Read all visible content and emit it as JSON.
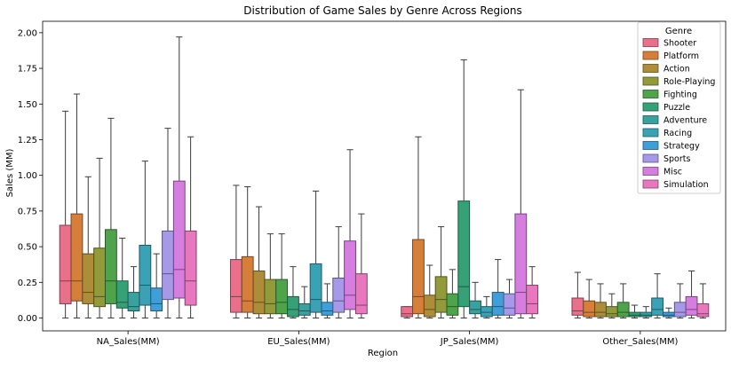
{
  "chart_data": {
    "type": "box",
    "title": "Distribution of Game Sales by Genre Across Regions",
    "xlabel": "Region",
    "ylabel": "Sales (MM)",
    "ylim": [
      -0.09,
      2.08
    ],
    "yticks": [
      "0.00",
      "0.25",
      "0.50",
      "0.75",
      "1.00",
      "1.25",
      "1.50",
      "1.75",
      "2.00"
    ],
    "categories": [
      "NA_Sales(MM)",
      "EU_Sales(MM)",
      "JP_Sales(MM)",
      "Other_Sales(MM)"
    ],
    "legend": {
      "title": "Genre",
      "placement": "upper right"
    },
    "series": [
      {
        "name": "Shooter",
        "color": "#e8708a",
        "boxes": [
          {
            "min": 0.0,
            "q1": 0.1,
            "median": 0.26,
            "q3": 0.65,
            "max": 1.45
          },
          {
            "min": 0.0,
            "q1": 0.04,
            "median": 0.15,
            "q3": 0.41,
            "max": 0.93
          },
          {
            "min": 0.0,
            "q1": 0.01,
            "median": 0.03,
            "q3": 0.08,
            "max": 0.08
          },
          {
            "min": 0.0,
            "q1": 0.02,
            "median": 0.05,
            "q3": 0.14,
            "max": 0.32
          }
        ]
      },
      {
        "name": "Platform",
        "color": "#d67f3a",
        "boxes": [
          {
            "min": 0.0,
            "q1": 0.12,
            "median": 0.26,
            "q3": 0.73,
            "max": 1.57
          },
          {
            "min": 0.0,
            "q1": 0.04,
            "median": 0.12,
            "q3": 0.43,
            "max": 0.92
          },
          {
            "min": 0.0,
            "q1": 0.03,
            "median": 0.15,
            "q3": 0.55,
            "max": 1.27
          },
          {
            "min": 0.0,
            "q1": 0.01,
            "median": 0.04,
            "q3": 0.12,
            "max": 0.27
          }
        ]
      },
      {
        "name": "Action",
        "color": "#ae8d3a",
        "boxes": [
          {
            "min": 0.0,
            "q1": 0.1,
            "median": 0.18,
            "q3": 0.45,
            "max": 0.99
          },
          {
            "min": 0.0,
            "q1": 0.03,
            "median": 0.11,
            "q3": 0.33,
            "max": 0.78
          },
          {
            "min": 0.0,
            "q1": 0.01,
            "median": 0.06,
            "q3": 0.16,
            "max": 0.37
          },
          {
            "min": 0.0,
            "q1": 0.01,
            "median": 0.04,
            "q3": 0.11,
            "max": 0.24
          }
        ]
      },
      {
        "name": "Role-Playing",
        "color": "#929a3a",
        "boxes": [
          {
            "min": 0.0,
            "q1": 0.08,
            "median": 0.15,
            "q3": 0.49,
            "max": 1.12
          },
          {
            "min": 0.0,
            "q1": 0.03,
            "median": 0.1,
            "q3": 0.27,
            "max": 0.59
          },
          {
            "min": 0.0,
            "q1": 0.04,
            "median": 0.13,
            "q3": 0.29,
            "max": 0.64
          },
          {
            "min": 0.0,
            "q1": 0.01,
            "median": 0.03,
            "q3": 0.08,
            "max": 0.17
          }
        ]
      },
      {
        "name": "Fighting",
        "color": "#4fa34a",
        "boxes": [
          {
            "min": 0.0,
            "q1": 0.1,
            "median": 0.26,
            "q3": 0.62,
            "max": 1.4
          },
          {
            "min": 0.0,
            "q1": 0.03,
            "median": 0.11,
            "q3": 0.27,
            "max": 0.59
          },
          {
            "min": 0.0,
            "q1": 0.02,
            "median": 0.08,
            "q3": 0.17,
            "max": 0.34
          },
          {
            "min": 0.0,
            "q1": 0.01,
            "median": 0.04,
            "q3": 0.11,
            "max": 0.24
          }
        ]
      },
      {
        "name": "Puzzle",
        "color": "#36a177",
        "boxes": [
          {
            "min": 0.0,
            "q1": 0.07,
            "median": 0.11,
            "q3": 0.26,
            "max": 0.56
          },
          {
            "min": 0.0,
            "q1": 0.01,
            "median": 0.06,
            "q3": 0.15,
            "max": 0.36
          },
          {
            "min": 0.0,
            "q1": 0.08,
            "median": 0.22,
            "q3": 0.82,
            "max": 1.81
          },
          {
            "min": 0.0,
            "q1": 0.01,
            "median": 0.02,
            "q3": 0.04,
            "max": 0.09
          }
        ]
      },
      {
        "name": "Adventure",
        "color": "#39a19e",
        "boxes": [
          {
            "min": 0.0,
            "q1": 0.05,
            "median": 0.08,
            "q3": 0.18,
            "max": 0.36
          },
          {
            "min": 0.0,
            "q1": 0.02,
            "median": 0.05,
            "q3": 0.1,
            "max": 0.22
          },
          {
            "min": 0.0,
            "q1": 0.03,
            "median": 0.06,
            "q3": 0.12,
            "max": 0.25
          },
          {
            "min": 0.0,
            "q1": 0.01,
            "median": 0.02,
            "q3": 0.04,
            "max": 0.08
          }
        ]
      },
      {
        "name": "Racing",
        "color": "#3ba2b6",
        "boxes": [
          {
            "min": 0.0,
            "q1": 0.09,
            "median": 0.23,
            "q3": 0.51,
            "max": 1.1
          },
          {
            "min": 0.0,
            "q1": 0.04,
            "median": 0.13,
            "q3": 0.38,
            "max": 0.89
          },
          {
            "min": 0.0,
            "q1": 0.01,
            "median": 0.04,
            "q3": 0.08,
            "max": 0.15
          },
          {
            "min": 0.0,
            "q1": 0.02,
            "median": 0.06,
            "q3": 0.14,
            "max": 0.31
          }
        ]
      },
      {
        "name": "Strategy",
        "color": "#3f9fd9",
        "boxes": [
          {
            "min": 0.0,
            "q1": 0.05,
            "median": 0.1,
            "q3": 0.21,
            "max": 0.45
          },
          {
            "min": 0.0,
            "q1": 0.02,
            "median": 0.05,
            "q3": 0.11,
            "max": 0.24
          },
          {
            "min": 0.0,
            "q1": 0.02,
            "median": 0.08,
            "q3": 0.18,
            "max": 0.41
          },
          {
            "min": 0.0,
            "q1": 0.01,
            "median": 0.02,
            "q3": 0.04,
            "max": 0.07
          }
        ]
      },
      {
        "name": "Sports",
        "color": "#a69ae8",
        "boxes": [
          {
            "min": 0.0,
            "q1": 0.13,
            "median": 0.31,
            "q3": 0.61,
            "max": 1.33
          },
          {
            "min": 0.0,
            "q1": 0.04,
            "median": 0.12,
            "q3": 0.28,
            "max": 0.64
          },
          {
            "min": 0.0,
            "q1": 0.02,
            "median": 0.07,
            "q3": 0.17,
            "max": 0.27
          },
          {
            "min": 0.0,
            "q1": 0.01,
            "median": 0.04,
            "q3": 0.11,
            "max": 0.24
          }
        ]
      },
      {
        "name": "Misc",
        "color": "#d57ee0",
        "boxes": [
          {
            "min": 0.0,
            "q1": 0.14,
            "median": 0.34,
            "q3": 0.96,
            "max": 1.97
          },
          {
            "min": 0.0,
            "q1": 0.06,
            "median": 0.16,
            "q3": 0.54,
            "max": 1.18
          },
          {
            "min": 0.0,
            "q1": 0.03,
            "median": 0.18,
            "q3": 0.73,
            "max": 1.6
          },
          {
            "min": 0.0,
            "q1": 0.02,
            "median": 0.06,
            "q3": 0.15,
            "max": 0.33
          }
        ]
      },
      {
        "name": "Simulation",
        "color": "#e877be",
        "boxes": [
          {
            "min": 0.0,
            "q1": 0.09,
            "median": 0.26,
            "q3": 0.61,
            "max": 1.27
          },
          {
            "min": 0.0,
            "q1": 0.03,
            "median": 0.09,
            "q3": 0.31,
            "max": 0.73
          },
          {
            "min": 0.0,
            "q1": 0.03,
            "median": 0.1,
            "q3": 0.23,
            "max": 0.36
          },
          {
            "min": 0.0,
            "q1": 0.01,
            "median": 0.03,
            "q3": 0.1,
            "max": 0.24
          }
        ]
      }
    ]
  }
}
